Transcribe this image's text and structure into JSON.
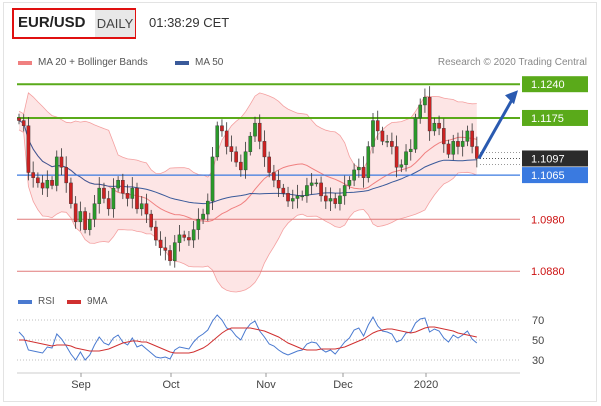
{
  "header": {
    "symbol": "EUR/USD",
    "period": "DAILY",
    "time": "01:38:29 CET"
  },
  "legend": {
    "ma20_label": "MA 20 + Bollinger Bands",
    "ma50_label": "MA 50",
    "rsi_label": "RSI",
    "ma9_label": "9MA",
    "copyright": "Research © 2020 Trading Central"
  },
  "colors": {
    "ma20": "#f08080",
    "ma50": "#3a5a9a",
    "band_fill": "#fde0e0",
    "bull": "#2a9a2a",
    "bear": "#cc2222",
    "resistance": "#5aaa1a",
    "support_blue": "#3a7ae0",
    "support_red": "#e07a7a",
    "rsi": "#4a7ad0",
    "rsi_ma": "#d03030",
    "arrow": "#2a5ab0"
  },
  "chart_data": [
    {
      "type": "candlestick",
      "x_ticks": [
        "Sep",
        "Oct",
        "Nov",
        "Dec",
        "2020"
      ],
      "ylim": [
        1.0865,
        1.125
      ],
      "current_price": "1.1097",
      "levels": [
        {
          "value": 1.124,
          "label": "1.1240",
          "kind": "resistance"
        },
        {
          "value": 1.1175,
          "label": "1.1175",
          "kind": "resistance"
        },
        {
          "value": 1.1065,
          "label": "1.1065",
          "kind": "pivot"
        },
        {
          "value": 1.098,
          "label": "1.0980",
          "kind": "support"
        },
        {
          "value": 1.088,
          "label": "1.0880",
          "kind": "support"
        }
      ],
      "closes": [
        1.117,
        1.116,
        1.107,
        1.106,
        1.105,
        1.104,
        1.1055,
        1.1045,
        1.11,
        1.108,
        1.105,
        1.101,
        1.0975,
        1.0995,
        1.096,
        1.098,
        1.101,
        1.104,
        1.102,
        1.1,
        1.104,
        1.1055,
        1.103,
        1.102,
        1.104,
        1.1,
        1.101,
        1.099,
        1.0965,
        1.094,
        1.0925,
        1.092,
        1.09,
        1.0935,
        1.095,
        1.0945,
        1.094,
        1.096,
        1.098,
        1.099,
        1.1015,
        1.11,
        1.116,
        1.115,
        1.112,
        1.111,
        1.109,
        1.1075,
        1.111,
        1.114,
        1.1165,
        1.113,
        1.11,
        1.107,
        1.1055,
        1.104,
        1.103,
        1.1015,
        1.102,
        1.1025,
        1.1025,
        1.1045,
        1.105,
        1.105,
        1.1025,
        1.1015,
        1.102,
        1.101,
        1.1025,
        1.1045,
        1.1055,
        1.1075,
        1.108,
        1.106,
        1.112,
        1.117,
        1.115,
        1.113,
        1.113,
        1.112,
        1.108,
        1.1085,
        1.111,
        1.1115,
        1.1175,
        1.12,
        1.1215,
        1.115,
        1.1165,
        1.1155,
        1.1125,
        1.1105,
        1.113,
        1.112,
        1.113,
        1.115,
        1.112,
        1.1097
      ]
    },
    {
      "type": "line",
      "title": "RSI",
      "y_ticks": [
        "70",
        "50",
        "30"
      ],
      "ylim": [
        20,
        80
      ],
      "series": [
        {
          "name": "RSI",
          "values": [
            58,
            53,
            40,
            39,
            38,
            37,
            43,
            42,
            56,
            51,
            44,
            36,
            30,
            38,
            30,
            35,
            45,
            53,
            47,
            45,
            52,
            55,
            48,
            45,
            52,
            43,
            45,
            41,
            37,
            33,
            32,
            33,
            31,
            40,
            43,
            42,
            41,
            48,
            53,
            56,
            60,
            69,
            75,
            70,
            62,
            60,
            54,
            50,
            60,
            66,
            69,
            59,
            53,
            46,
            44,
            40,
            37,
            35,
            37,
            39,
            40,
            46,
            48,
            47,
            41,
            38,
            40,
            36,
            42,
            48,
            52,
            60,
            62,
            54,
            65,
            73,
            64,
            59,
            58,
            56,
            48,
            50,
            57,
            58,
            67,
            71,
            72,
            58,
            61,
            59,
            52,
            48,
            55,
            52,
            55,
            59,
            51,
            47
          ]
        },
        {
          "name": "9MA",
          "values": [
            50,
            50,
            49,
            48,
            47,
            46,
            45,
            44,
            45,
            45,
            45,
            44,
            42,
            41,
            40,
            39,
            39,
            39,
            40,
            41,
            43,
            45,
            47,
            48,
            49,
            49,
            48,
            48,
            46,
            44,
            42,
            40,
            38,
            37,
            37,
            37,
            37,
            38,
            40,
            42,
            45,
            49,
            53,
            57,
            60,
            62,
            62,
            62,
            62,
            62,
            61,
            60,
            59,
            57,
            55,
            53,
            50,
            47,
            45,
            43,
            41,
            40,
            40,
            40,
            41,
            41,
            41,
            41,
            42,
            43,
            45,
            47,
            49,
            51,
            54,
            57,
            59,
            60,
            61,
            61,
            60,
            59,
            58,
            57,
            58,
            60,
            62,
            63,
            63,
            62,
            61,
            60,
            59,
            57,
            56,
            55,
            54,
            53
          ]
        }
      ]
    }
  ]
}
